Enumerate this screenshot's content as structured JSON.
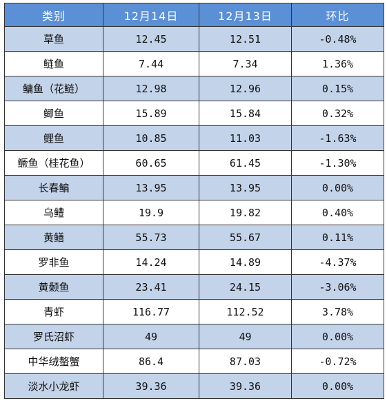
{
  "table": {
    "headers": [
      "类别",
      "12月14日",
      "12月13日",
      "环比"
    ],
    "rows": [
      [
        "草鱼",
        "12.45",
        "12.51",
        "-0.48%"
      ],
      [
        "鲢鱼",
        "7.44",
        "7.34",
        "1.36%"
      ],
      [
        "鳙鱼（花鲢）",
        "12.98",
        "12.96",
        "0.15%"
      ],
      [
        "鲫鱼",
        "15.89",
        "15.84",
        "0.32%"
      ],
      [
        "鲤鱼",
        "10.85",
        "11.03",
        "-1.63%"
      ],
      [
        "鳜鱼（桂花鱼）",
        "60.65",
        "61.45",
        "-1.30%"
      ],
      [
        "长春鳊",
        "13.95",
        "13.95",
        "0.00%"
      ],
      [
        "乌鳢",
        "19.9",
        "19.82",
        "0.40%"
      ],
      [
        "黄鳝",
        "55.73",
        "55.67",
        "0.11%"
      ],
      [
        "罗非鱼",
        "14.24",
        "14.89",
        "-4.37%"
      ],
      [
        "黄颡鱼",
        "23.41",
        "24.15",
        "-3.06%"
      ],
      [
        "青虾",
        "116.77",
        "112.52",
        "3.78%"
      ],
      [
        "罗氏沼虾",
        "49",
        "49",
        "0.00%"
      ],
      [
        "中华绒螯蟹",
        "86.4",
        "87.03",
        "-0.72%"
      ],
      [
        "淡水小龙虾",
        "39.36",
        "39.36",
        "0.00%"
      ]
    ]
  },
  "colors": {
    "header_bg": "#5b8fd6",
    "stripe_bg": "#c3d3ea",
    "row_bg": "#ffffff"
  }
}
